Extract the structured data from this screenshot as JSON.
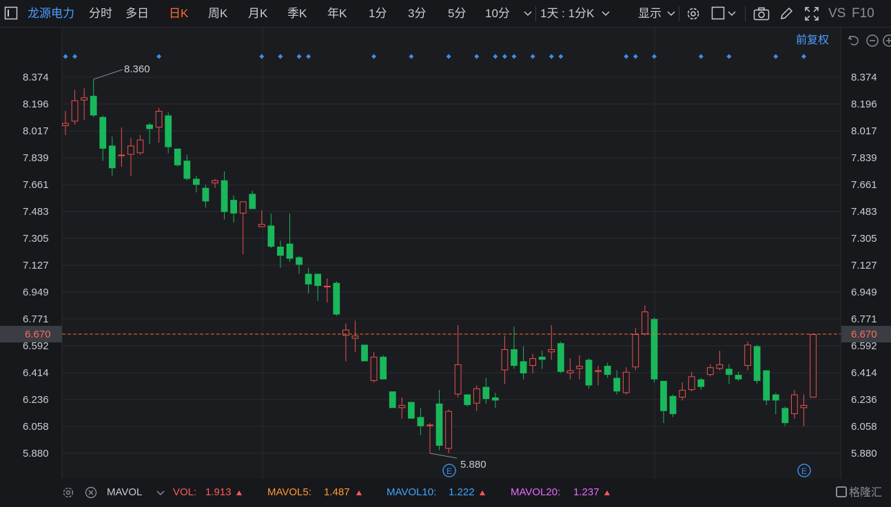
{
  "toolbar": {
    "stock_name": "龙源电力",
    "periods": [
      "分时",
      "多日",
      "日K",
      "周K",
      "月K",
      "季K",
      "年K",
      "1分",
      "3分",
      "5分",
      "10分"
    ],
    "active_period": "日K",
    "combo_label": "1天 : 1分K",
    "display_label": "显示",
    "vs_label": "VS",
    "f10_label": "F10",
    "adjust_label": "前复权"
  },
  "indicators": {
    "name": "MAVOL",
    "items": [
      {
        "label": "VOL:",
        "value": "1.913",
        "color": "#ff5a5a"
      },
      {
        "label": "MAVOL5:",
        "value": "1.487",
        "color": "#ff9a2e"
      },
      {
        "label": "MAVOL10:",
        "value": "1.222",
        "color": "#3fa7ff"
      },
      {
        "label": "MAVOL20:",
        "value": "1.237",
        "color": "#e86bff"
      }
    ]
  },
  "watermark": "格隆汇",
  "colors": {
    "up": "#f0514f",
    "down": "#19b85a",
    "accent": "#ff6b2c",
    "link": "#4a9eff",
    "marker": "#3b8eea"
  },
  "chart_data": {
    "type": "candlestick",
    "price_scale": "前复权",
    "ylim": [
      5.8,
      8.46
    ],
    "yticks": [
      "8.374",
      "8.196",
      "8.017",
      "7.839",
      "7.661",
      "7.483",
      "7.305",
      "7.127",
      "6.949",
      "6.771",
      "6.592",
      "6.414",
      "6.236",
      "6.058",
      "5.880"
    ],
    "current_price": "6.670",
    "annotations": [
      {
        "label": "8.360",
        "kind": "max",
        "price": 8.36
      },
      {
        "label": "5.880",
        "kind": "min",
        "price": 5.88
      }
    ],
    "event_marker_label": "E",
    "candles": [
      {
        "o": 8.05,
        "c": 8.07,
        "h": 8.15,
        "l": 7.99
      },
      {
        "o": 8.08,
        "c": 8.22,
        "h": 8.29,
        "l": 8.06
      },
      {
        "o": 8.22,
        "c": 8.24,
        "h": 8.3,
        "l": 8.09
      },
      {
        "o": 8.25,
        "c": 8.12,
        "h": 8.36,
        "l": 8.11
      },
      {
        "o": 8.11,
        "c": 7.9,
        "h": 8.12,
        "l": 7.82
      },
      {
        "o": 7.92,
        "c": 7.77,
        "h": 7.98,
        "l": 7.72
      },
      {
        "o": 7.86,
        "c": 7.86,
        "h": 8.04,
        "l": 7.78
      },
      {
        "o": 7.86,
        "c": 7.92,
        "h": 7.97,
        "l": 7.72
      },
      {
        "o": 7.87,
        "c": 7.96,
        "h": 7.99,
        "l": 7.86
      },
      {
        "o": 8.06,
        "c": 8.03,
        "h": 8.07,
        "l": 7.93
      },
      {
        "o": 8.04,
        "c": 8.15,
        "h": 8.17,
        "l": 7.94
      },
      {
        "o": 8.12,
        "c": 7.91,
        "h": 8.14,
        "l": 7.87
      },
      {
        "o": 7.9,
        "c": 7.79,
        "h": 7.9,
        "l": 7.78
      },
      {
        "o": 7.82,
        "c": 7.7,
        "h": 7.86,
        "l": 7.69
      },
      {
        "o": 7.7,
        "c": 7.66,
        "h": 7.72,
        "l": 7.61
      },
      {
        "o": 7.64,
        "c": 7.55,
        "h": 7.66,
        "l": 7.51
      },
      {
        "o": 7.67,
        "c": 7.69,
        "h": 7.7,
        "l": 7.64
      },
      {
        "o": 7.69,
        "c": 7.48,
        "h": 7.75,
        "l": 7.43
      },
      {
        "o": 7.56,
        "c": 7.47,
        "h": 7.59,
        "l": 7.41
      },
      {
        "o": 7.47,
        "c": 7.55,
        "h": 7.55,
        "l": 7.2
      },
      {
        "o": 7.6,
        "c": 7.5,
        "h": 7.62,
        "l": 7.5
      },
      {
        "o": 7.38,
        "c": 7.4,
        "h": 7.49,
        "l": 7.38
      },
      {
        "o": 7.39,
        "c": 7.25,
        "h": 7.47,
        "l": 7.24
      },
      {
        "o": 7.25,
        "c": 7.19,
        "h": 7.29,
        "l": 7.11
      },
      {
        "o": 7.27,
        "c": 7.17,
        "h": 7.47,
        "l": 7.15
      },
      {
        "o": 7.18,
        "c": 7.13,
        "h": 7.19,
        "l": 7.07
      },
      {
        "o": 7.07,
        "c": 7.0,
        "h": 7.11,
        "l": 6.94
      },
      {
        "o": 7.07,
        "c": 6.99,
        "h": 7.07,
        "l": 6.89
      },
      {
        "o": 6.99,
        "c": 6.99,
        "h": 7.04,
        "l": 6.88
      },
      {
        "o": 7.01,
        "c": 6.8,
        "h": 7.02,
        "l": 6.79
      },
      {
        "o": 6.66,
        "c": 6.7,
        "h": 6.74,
        "l": 6.49
      },
      {
        "o": 6.64,
        "c": 6.66,
        "h": 6.76,
        "l": 6.55
      },
      {
        "o": 6.6,
        "c": 6.49,
        "h": 6.6,
        "l": 6.49
      },
      {
        "o": 6.36,
        "c": 6.52,
        "h": 6.55,
        "l": 6.35
      },
      {
        "o": 6.52,
        "c": 6.37,
        "h": 6.53,
        "l": 6.37
      },
      {
        "o": 6.29,
        "c": 6.18,
        "h": 6.29,
        "l": 6.18
      },
      {
        "o": 6.18,
        "c": 6.2,
        "h": 6.25,
        "l": 6.11
      },
      {
        "o": 6.22,
        "c": 6.11,
        "h": 6.22,
        "l": 6.11
      },
      {
        "o": 6.12,
        "c": 6.06,
        "h": 6.18,
        "l": 6.0
      },
      {
        "o": 6.07,
        "c": 6.07,
        "h": 6.08,
        "l": 5.88
      },
      {
        "o": 6.21,
        "c": 5.93,
        "h": 6.3,
        "l": 5.9
      },
      {
        "o": 5.91,
        "c": 6.16,
        "h": 6.17,
        "l": 5.88
      },
      {
        "o": 6.27,
        "c": 6.47,
        "h": 6.73,
        "l": 6.25
      },
      {
        "o": 6.27,
        "c": 6.2,
        "h": 6.27,
        "l": 6.19
      },
      {
        "o": 6.21,
        "c": 6.31,
        "h": 6.33,
        "l": 6.16
      },
      {
        "o": 6.32,
        "c": 6.24,
        "h": 6.38,
        "l": 6.21
      },
      {
        "o": 6.25,
        "c": 6.23,
        "h": 6.28,
        "l": 6.18
      },
      {
        "o": 6.43,
        "c": 6.57,
        "h": 6.66,
        "l": 6.34
      },
      {
        "o": 6.57,
        "c": 6.46,
        "h": 6.72,
        "l": 6.44
      },
      {
        "o": 6.49,
        "c": 6.41,
        "h": 6.59,
        "l": 6.37
      },
      {
        "o": 6.46,
        "c": 6.51,
        "h": 6.54,
        "l": 6.41
      },
      {
        "o": 6.52,
        "c": 6.5,
        "h": 6.56,
        "l": 6.44
      },
      {
        "o": 6.55,
        "c": 6.57,
        "h": 6.73,
        "l": 6.5
      },
      {
        "o": 6.61,
        "c": 6.42,
        "h": 6.62,
        "l": 6.41
      },
      {
        "o": 6.41,
        "c": 6.43,
        "h": 6.51,
        "l": 6.37
      },
      {
        "o": 6.44,
        "c": 6.46,
        "h": 6.53,
        "l": 6.37
      },
      {
        "o": 6.5,
        "c": 6.33,
        "h": 6.51,
        "l": 6.31
      },
      {
        "o": 6.43,
        "c": 6.43,
        "h": 6.46,
        "l": 6.33
      },
      {
        "o": 6.46,
        "c": 6.4,
        "h": 6.48,
        "l": 6.38
      },
      {
        "o": 6.38,
        "c": 6.29,
        "h": 6.43,
        "l": 6.27
      },
      {
        "o": 6.28,
        "c": 6.42,
        "h": 6.45,
        "l": 6.27
      },
      {
        "o": 6.45,
        "c": 6.67,
        "h": 6.71,
        "l": 6.43
      },
      {
        "o": 6.67,
        "c": 6.82,
        "h": 6.86,
        "l": 6.66
      },
      {
        "o": 6.77,
        "c": 6.37,
        "h": 6.78,
        "l": 6.35
      },
      {
        "o": 6.36,
        "c": 6.16,
        "h": 6.36,
        "l": 6.08
      },
      {
        "o": 6.26,
        "c": 6.14,
        "h": 6.27,
        "l": 6.12
      },
      {
        "o": 6.25,
        "c": 6.3,
        "h": 6.35,
        "l": 6.23
      },
      {
        "o": 6.3,
        "c": 6.39,
        "h": 6.42,
        "l": 6.29
      },
      {
        "o": 6.37,
        "c": 6.32,
        "h": 6.38,
        "l": 6.3
      },
      {
        "o": 6.4,
        "c": 6.45,
        "h": 6.47,
        "l": 6.39
      },
      {
        "o": 6.44,
        "c": 6.47,
        "h": 6.56,
        "l": 6.43
      },
      {
        "o": 6.44,
        "c": 6.4,
        "h": 6.47,
        "l": 6.34
      },
      {
        "o": 6.4,
        "c": 6.37,
        "h": 6.42,
        "l": 6.36
      },
      {
        "o": 6.46,
        "c": 6.6,
        "h": 6.62,
        "l": 6.43
      },
      {
        "o": 6.59,
        "c": 6.36,
        "h": 6.6,
        "l": 6.34
      },
      {
        "o": 6.43,
        "c": 6.23,
        "h": 6.43,
        "l": 6.2
      },
      {
        "o": 6.27,
        "c": 6.23,
        "h": 6.28,
        "l": 6.14
      },
      {
        "o": 6.18,
        "c": 6.08,
        "h": 6.19,
        "l": 6.06
      },
      {
        "o": 6.14,
        "c": 6.27,
        "h": 6.3,
        "l": 6.11
      },
      {
        "o": 6.18,
        "c": 6.2,
        "h": 6.27,
        "l": 6.06
      },
      {
        "o": 6.25,
        "c": 6.67,
        "h": 6.67,
        "l": 6.25
      }
    ]
  }
}
